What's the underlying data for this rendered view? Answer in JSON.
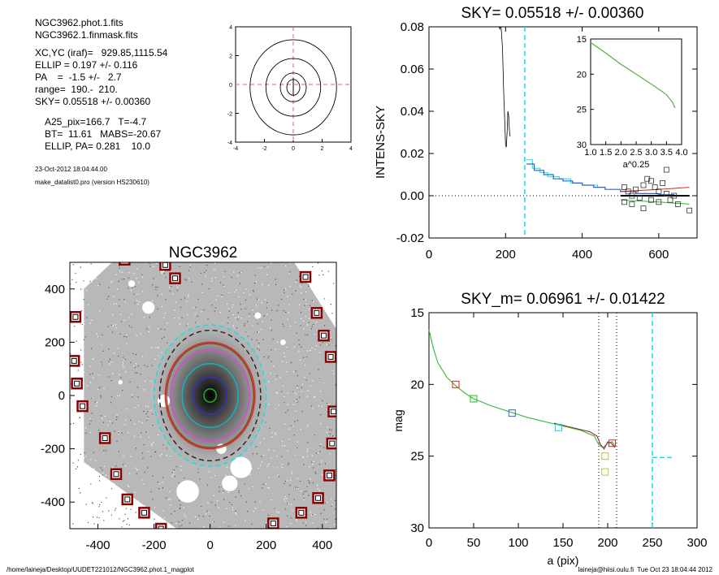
{
  "info": {
    "lines": [
      "NGC3962.phot.1.fits",
      "NGC3962.1.finmask.fits",
      "XC,YC (iraf)=   929.85,1115.54",
      "ELLIP = 0.197 +/- 0.116",
      "PA    =  -1.5 +/-   2.7",
      "range=  190.-  210.",
      "SKY= 0.05518 +/- 0.00360",
      "A25_pix=166.7   T=-4.7",
      "BT=  11.61   MABS=-20.67",
      "ELLIP, PA= 0.281    10.0"
    ],
    "date": "23-Oct-2012 18:04:44.00",
    "program": "make_datalist0.pro (version HS230610)"
  },
  "footer": {
    "left": "/home/laineja/Desktop/UUDET221012/NGC3962.phot.1_magplot",
    "right": "laineja@hiisi.oulu.fi  Tue Oct 23 18:04:44 2012"
  },
  "colors": {
    "cyan": "#00e5ee",
    "blue": "#3060d0",
    "red": "#e02020",
    "green": "#20c020",
    "navy": "#2020a0",
    "yellow": "#c0c040",
    "darkred": "#8b0000"
  },
  "chart_data": [
    {
      "type": "line",
      "name": "contour",
      "title": "",
      "xticks": [
        -4,
        -2,
        0,
        2,
        4
      ],
      "yticks": [
        4,
        2,
        0,
        -2,
        -4
      ],
      "xlim": [
        -4,
        4
      ],
      "ylim": [
        -4,
        4
      ]
    },
    {
      "type": "line",
      "name": "intensity-profile",
      "title": "SKY= 0.05518 +/- 0.00360",
      "ylabel": "INTENS-SKY",
      "xlim": [
        0,
        700
      ],
      "ylim": [
        -0.02,
        0.08
      ],
      "xticks": [
        0,
        200,
        400,
        600
      ],
      "yticks": [
        "0.08",
        "0.06",
        "0.04",
        "0.02",
        "0.00",
        "-0.02"
      ],
      "sky_line_x": 250,
      "profile_black": [
        [
          180,
          0.082
        ],
        [
          185,
          0.079
        ],
        [
          188,
          0.081
        ],
        [
          192,
          0.07
        ],
        [
          195,
          0.05
        ],
        [
          198,
          0.035
        ],
        [
          200,
          0.024
        ],
        [
          202,
          0.023
        ],
        [
          204,
          0.03
        ],
        [
          206,
          0.04
        ],
        [
          208,
          0.038
        ],
        [
          210,
          0.031
        ],
        [
          212,
          0.028
        ]
      ],
      "step_blue": [
        [
          255,
          0.015
        ],
        [
          275,
          0.012
        ],
        [
          300,
          0.01
        ],
        [
          325,
          0.008
        ],
        [
          350,
          0.007
        ],
        [
          375,
          0.006
        ],
        [
          400,
          0.005
        ],
        [
          430,
          0.004
        ],
        [
          460,
          0.003
        ],
        [
          500,
          0.002
        ],
        [
          540,
          0.001
        ],
        [
          600,
          0.0005
        ],
        [
          640,
          0.0
        ]
      ],
      "step_cyan": [
        [
          255,
          0.017
        ],
        [
          270,
          0.013
        ],
        [
          290,
          0.011
        ],
        [
          310,
          0.009
        ],
        [
          340,
          0.008
        ],
        [
          370,
          0.006
        ],
        [
          400,
          0.005
        ],
        [
          440,
          0.004
        ]
      ],
      "red_line": [
        [
          500,
          0.002
        ],
        [
          600,
          0.003
        ],
        [
          680,
          0.004
        ]
      ],
      "green_line": [
        [
          500,
          -0.002
        ],
        [
          600,
          -0.003
        ],
        [
          680,
          -0.004
        ]
      ],
      "dark_line": [
        [
          500,
          0.0
        ],
        [
          680,
          0.0
        ]
      ],
      "squares": [
        [
          510,
          0.004
        ],
        [
          520,
          0.002
        ],
        [
          530,
          0.0
        ],
        [
          540,
          0.003
        ],
        [
          550,
          -0.001
        ],
        [
          560,
          0.005
        ],
        [
          570,
          0.008
        ],
        [
          580,
          0.007
        ],
        [
          590,
          0.004
        ],
        [
          600,
          0.002
        ],
        [
          610,
          0.006
        ],
        [
          620,
          0.001
        ],
        [
          630,
          -0.002
        ],
        [
          510,
          -0.003
        ],
        [
          530,
          -0.004
        ],
        [
          560,
          -0.006
        ],
        [
          580,
          -0.002
        ],
        [
          600,
          -0.003
        ],
        [
          640,
          0.0
        ],
        [
          650,
          -0.004
        ],
        [
          680,
          -0.007
        ],
        [
          620,
          0.0123
        ]
      ]
    },
    {
      "type": "line",
      "name": "inset",
      "xlabel": "a^0.25",
      "xlim": [
        1.0,
        4.0
      ],
      "ylim": [
        15,
        30
      ],
      "xticks": [
        "1.0",
        "1.5",
        "2.0",
        "2.5",
        "3.0",
        "3.5",
        "4.0"
      ],
      "yticks": [
        15,
        20,
        25,
        30
      ],
      "curve": [
        [
          1.0,
          15.5
        ],
        [
          1.5,
          17.0
        ],
        [
          2.0,
          18.6
        ],
        [
          2.5,
          20.0
        ],
        [
          3.0,
          21.4
        ],
        [
          3.5,
          22.9
        ],
        [
          3.7,
          24.0
        ],
        [
          3.78,
          24.8
        ]
      ]
    },
    {
      "type": "scatter",
      "name": "galaxy-image",
      "title": "NGC3962",
      "xlim": [
        -500,
        450
      ],
      "ylim": [
        -500,
        500
      ],
      "xticks": [
        -400,
        -200,
        0,
        200,
        400
      ],
      "yticks": [
        400,
        200,
        0,
        -200,
        -400
      ],
      "markers": [
        [
          -305,
          510
        ],
        [
          -160,
          490
        ],
        [
          -125,
          440
        ],
        [
          340,
          445
        ],
        [
          -480,
          295
        ],
        [
          380,
          310
        ],
        [
          -485,
          130
        ],
        [
          405,
          225
        ],
        [
          -475,
          45
        ],
        [
          430,
          145
        ],
        [
          -455,
          -40
        ],
        [
          440,
          -60
        ],
        [
          -375,
          -160
        ],
        [
          435,
          -180
        ],
        [
          -335,
          -295
        ],
        [
          425,
          -300
        ],
        [
          -295,
          -390
        ],
        [
          385,
          -385
        ],
        [
          -235,
          -440
        ],
        [
          325,
          -440
        ],
        [
          -175,
          -500
        ],
        [
          225,
          -480
        ]
      ],
      "ellipses": [
        {
          "rx": 200,
          "ry": 265,
          "color": "#00e5ee",
          "dash": true
        },
        {
          "rx": 180,
          "ry": 245,
          "color": "#222222",
          "dash": true
        },
        {
          "rx": 160,
          "ry": 200,
          "color": "#e02020",
          "dash": false
        },
        {
          "rx": 155,
          "ry": 195,
          "color": "#8b4513",
          "dash": false
        },
        {
          "rx": 140,
          "ry": 170,
          "color": "#dd44dd",
          "dash": false
        },
        {
          "rx": 100,
          "ry": 120,
          "color": "#00c0c0",
          "dash": false
        },
        {
          "rx": 60,
          "ry": 70,
          "color": "#3030d0",
          "dash": false
        },
        {
          "rx": 22,
          "ry": 25,
          "color": "#20c020",
          "dash": false
        }
      ]
    },
    {
      "type": "line",
      "name": "mag-profile",
      "title": "SKY_m=  0.06961 +/- 0.01422",
      "xlabel": "a (pix)",
      "ylabel": "mag",
      "xlim": [
        0,
        300
      ],
      "ylim": [
        15,
        30
      ],
      "xticks": [
        0,
        50,
        100,
        150,
        200,
        250,
        300
      ],
      "yticks": [
        15,
        20,
        25,
        30
      ],
      "vlines_dotted": [
        190,
        210
      ],
      "vline_cyan": 250,
      "cyan_seg": [
        [
          250,
          25.1
        ],
        [
          272,
          25.1
        ]
      ],
      "curve_green": [
        [
          0,
          16.2
        ],
        [
          5,
          17.5
        ],
        [
          10,
          18.5
        ],
        [
          20,
          19.5
        ],
        [
          30,
          20.1
        ],
        [
          40,
          20.6
        ],
        [
          50,
          21.0
        ],
        [
          70,
          21.5
        ],
        [
          90,
          21.9
        ],
        [
          110,
          22.3
        ],
        [
          130,
          22.6
        ],
        [
          150,
          22.9
        ],
        [
          170,
          23.2
        ],
        [
          185,
          23.6
        ],
        [
          190,
          24.2
        ],
        [
          195,
          24.4
        ],
        [
          200,
          24.1
        ],
        [
          205,
          24.0
        ],
        [
          208,
          24.3
        ]
      ],
      "curve_red": [
        [
          140,
          22.7
        ],
        [
          160,
          23.0
        ],
        [
          180,
          23.3
        ],
        [
          188,
          23.6
        ],
        [
          192,
          24.2
        ],
        [
          196,
          24.5
        ],
        [
          200,
          24.0
        ],
        [
          204,
          24.1
        ],
        [
          208,
          24.4
        ]
      ],
      "squares": [
        {
          "x": 30,
          "y": 20.0,
          "color": "#e02020"
        },
        {
          "x": 50,
          "y": 21.0,
          "color": "#20c020"
        },
        {
          "x": 93,
          "y": 22.0,
          "color": "#3060d0"
        },
        {
          "x": 145,
          "y": 23.0,
          "color": "#00e5ee"
        },
        {
          "x": 197,
          "y": 25.0,
          "color": "#c0c040"
        },
        {
          "x": 197,
          "y": 26.1,
          "color": "#c0c040"
        },
        {
          "x": 205,
          "y": 24.1,
          "color": "#e02020"
        }
      ]
    }
  ]
}
